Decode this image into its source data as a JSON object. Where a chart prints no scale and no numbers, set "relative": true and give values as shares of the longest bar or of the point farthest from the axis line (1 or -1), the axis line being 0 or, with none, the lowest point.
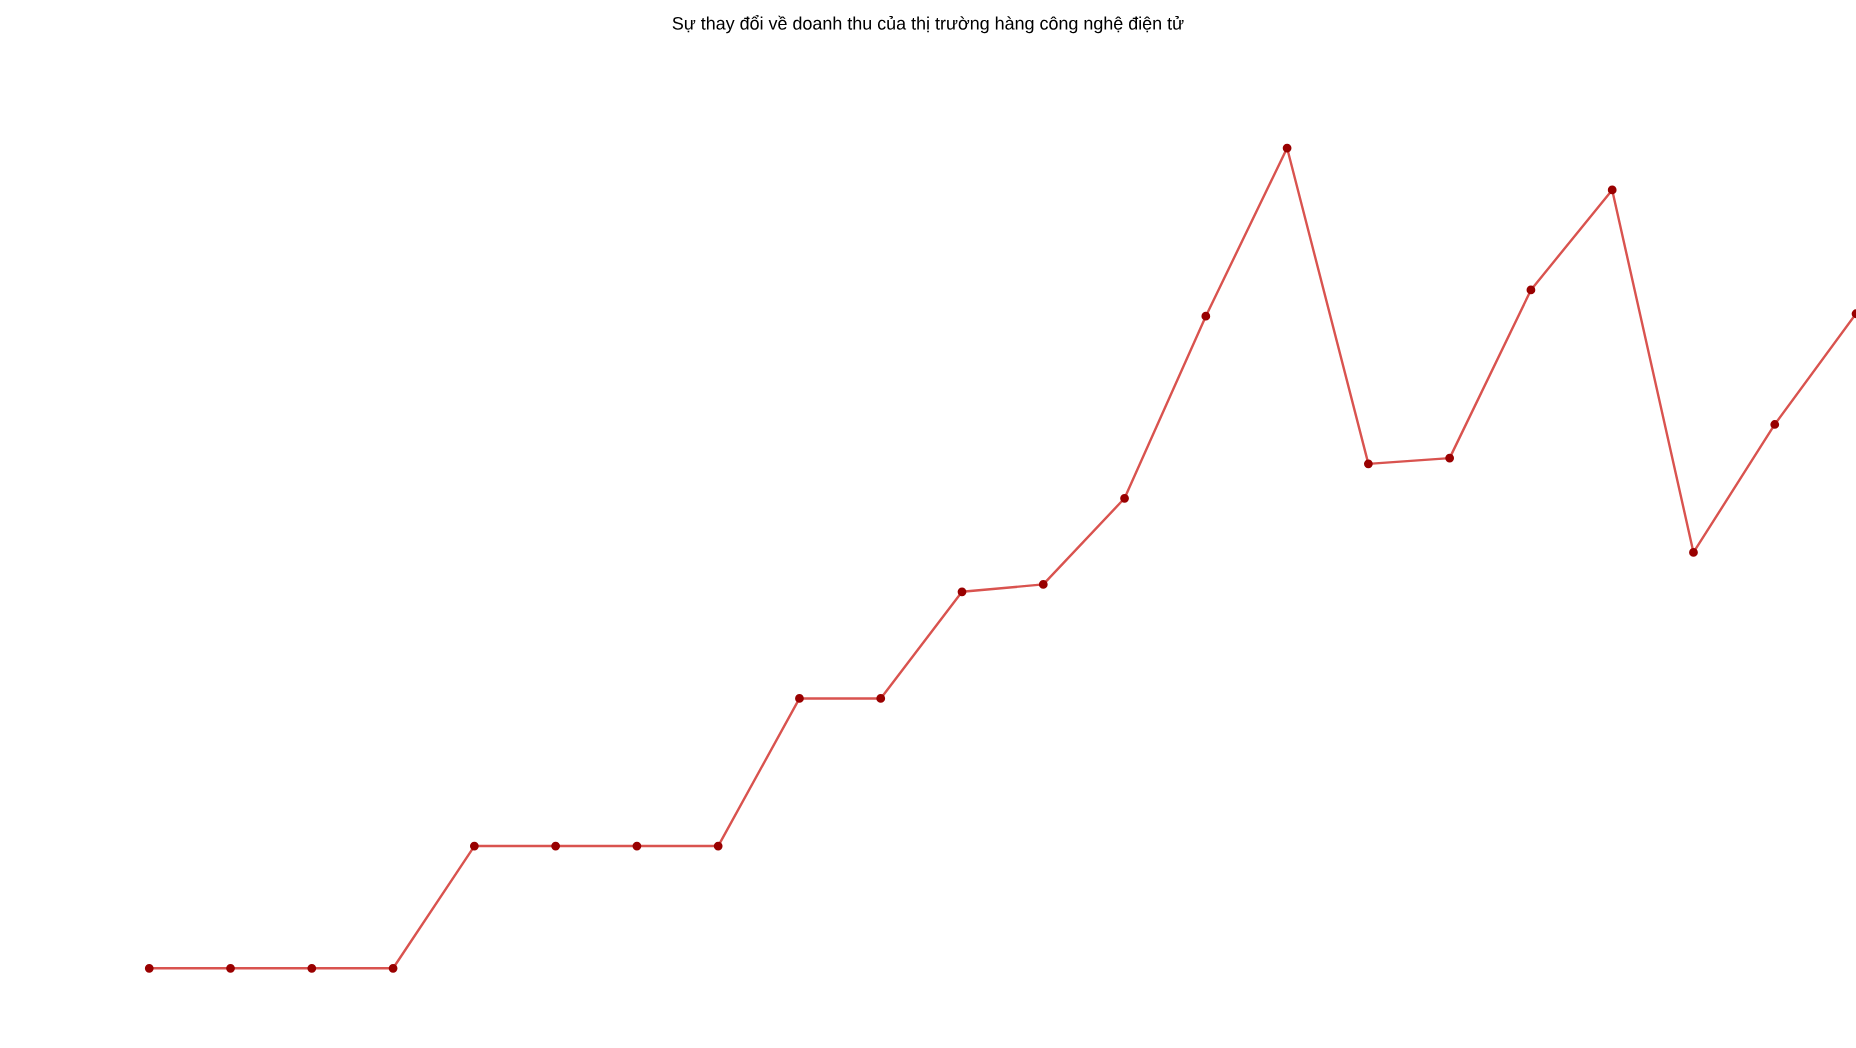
{
  "chart_data": {
    "type": "line",
    "title": "Sự thay đổi về doanh thu của thị trường hàng công nghệ điện tử",
    "relative": true,
    "marker": "circle",
    "line_style": "solid",
    "categories": [
      null,
      null,
      null,
      null,
      null,
      null,
      null,
      null,
      null,
      null,
      null,
      null,
      null,
      null,
      null,
      null,
      null,
      null,
      null,
      null,
      null,
      null
    ],
    "series": [
      {
        "color": "#d9534f",
        "values": [
          0,
          0,
          0,
          0,
          0.149,
          0.149,
          0.149,
          0.149,
          0.329,
          0.329,
          0.459,
          0.468,
          0.573,
          0.795,
          1,
          0.615,
          0.622,
          0.827,
          0.949,
          0.507,
          0.663,
          0.798
        ]
      }
    ]
  }
}
